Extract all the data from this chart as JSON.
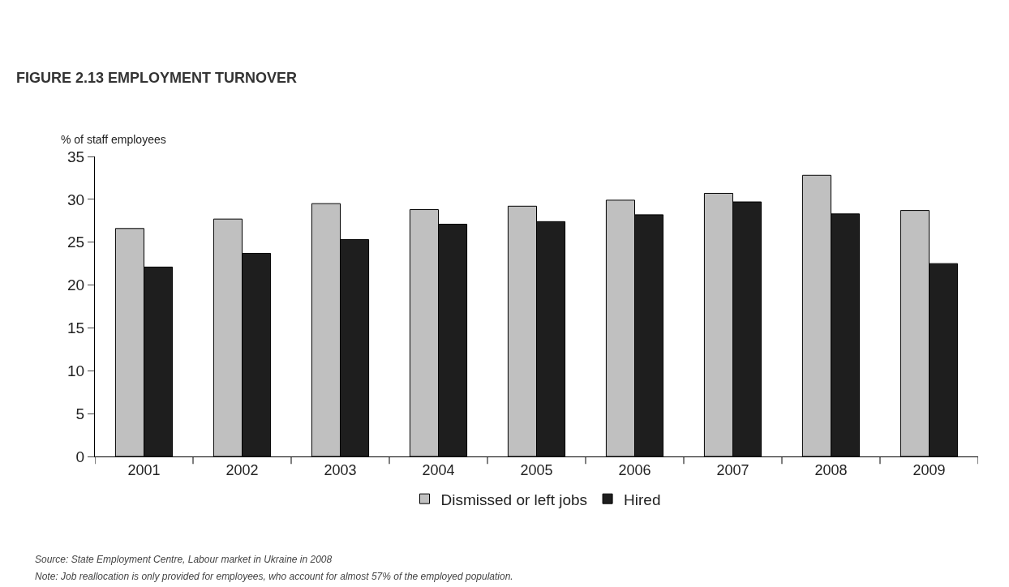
{
  "chart_data": {
    "type": "bar",
    "title": "FIGURE 2.13 EMPLOYMENT TURNOVER",
    "ylabel": "% of staff employees",
    "categories": [
      "2001",
      "2002",
      "2003",
      "2004",
      "2005",
      "2006",
      "2007",
      "2008",
      "2009"
    ],
    "series": [
      {
        "name": "Dismissed or left jobs",
        "color": "#c0c0c0",
        "values": [
          26.6,
          27.7,
          29.5,
          28.8,
          29.2,
          29.9,
          30.7,
          32.8,
          28.7
        ]
      },
      {
        "name": "Hired",
        "color": "#1e1e1e",
        "values": [
          22.1,
          23.7,
          25.3,
          27.1,
          27.4,
          28.2,
          29.7,
          28.3,
          22.5
        ]
      }
    ],
    "ylim": [
      0,
      35
    ],
    "yticks": [
      0,
      5,
      10,
      15,
      20,
      25,
      30,
      35
    ],
    "grid": false,
    "legend": "bottom",
    "annotations": [
      "Source: State Employment Centre, Labour market in Ukraine in 2008",
      "Note: Job reallocation is only provided for employees, who account for almost 57% of the employed population."
    ]
  }
}
